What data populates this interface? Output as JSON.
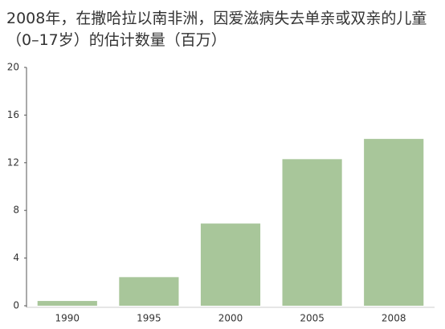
{
  "chart_data": {
    "type": "bar",
    "title": "2008年，在撒哈拉以南非洲，因爱滋病失去单亲或双亲的儿童（0–17岁）的估计数量（百万）",
    "categories": [
      "1990",
      "1995",
      "2000",
      "2005",
      "2008"
    ],
    "values": [
      0.4,
      2.4,
      6.9,
      12.3,
      14.0
    ],
    "color": "#a8c69a",
    "ylim": [
      0,
      20
    ],
    "yticks": [
      0,
      4,
      8,
      12,
      16,
      20
    ],
    "grid": false
  }
}
